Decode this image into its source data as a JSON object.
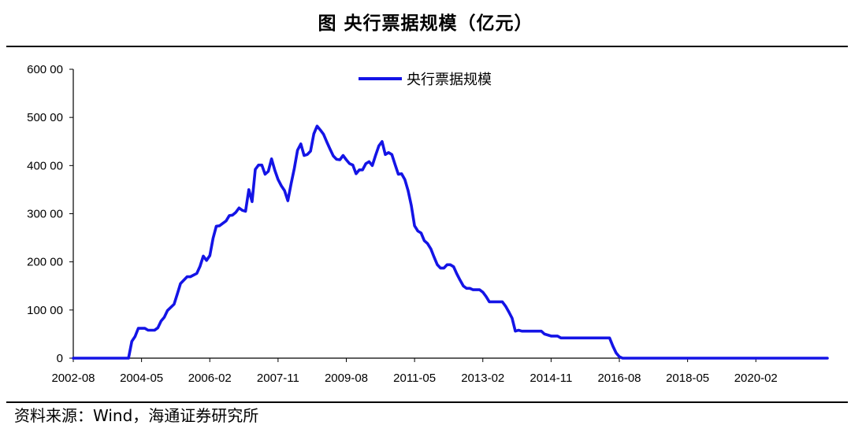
{
  "title": "图  央行票据规模（亿元）",
  "source": "资料来源：Wind，海通证券研究所",
  "chart_data": {
    "type": "line",
    "title": "央行票据规模（亿元）",
    "xlabel": "",
    "ylabel": "",
    "ylim": [
      0,
      60000
    ],
    "yticks": [
      0,
      10000,
      20000,
      30000,
      40000,
      50000,
      60000
    ],
    "ytick_labels": [
      "0",
      "100 00",
      "200 00",
      "300 00",
      "400 00",
      "500 00",
      "600 00"
    ],
    "xlim": [
      "2002-08",
      "2021-12"
    ],
    "xtick_labels": [
      "2002-08",
      "2004-05",
      "2006-02",
      "2007-11",
      "2009-08",
      "2011-05",
      "2013-02",
      "2014-11",
      "2016-08",
      "2018-05",
      "2020-02"
    ],
    "grid": false,
    "legend": "top-center",
    "color": "#1414e6",
    "series": [
      {
        "name": "央行票据规模",
        "points": [
          [
            "2002-08",
            0
          ],
          [
            "2003-06",
            0
          ],
          [
            "2004-01",
            0
          ],
          [
            "2004-02",
            3500
          ],
          [
            "2004-03",
            4500
          ],
          [
            "2004-04",
            6200
          ],
          [
            "2004-06",
            6200
          ],
          [
            "2004-07",
            5800
          ],
          [
            "2004-09",
            5800
          ],
          [
            "2004-10",
            6300
          ],
          [
            "2004-11",
            7700
          ],
          [
            "2004-12",
            8500
          ],
          [
            "2005-01",
            9900
          ],
          [
            "2005-03",
            11200
          ],
          [
            "2005-04",
            13300
          ],
          [
            "2005-05",
            15500
          ],
          [
            "2005-06",
            16200
          ],
          [
            "2005-07",
            16900
          ],
          [
            "2005-08",
            16900
          ],
          [
            "2005-10",
            17600
          ],
          [
            "2005-11",
            19100
          ],
          [
            "2005-12",
            21200
          ],
          [
            "2006-01",
            20300
          ],
          [
            "2006-02",
            21300
          ],
          [
            "2006-03",
            24900
          ],
          [
            "2006-04",
            27400
          ],
          [
            "2006-05",
            27500
          ],
          [
            "2006-06",
            28000
          ],
          [
            "2006-07",
            28500
          ],
          [
            "2006-08",
            29600
          ],
          [
            "2006-09",
            29700
          ],
          [
            "2006-10",
            30300
          ],
          [
            "2006-11",
            31200
          ],
          [
            "2006-12",
            30700
          ],
          [
            "2007-01",
            30500
          ],
          [
            "2007-02",
            35000
          ],
          [
            "2007-03",
            32500
          ],
          [
            "2007-04",
            39200
          ],
          [
            "2007-05",
            40100
          ],
          [
            "2007-06",
            40100
          ],
          [
            "2007-07",
            38200
          ],
          [
            "2007-08",
            38800
          ],
          [
            "2007-09",
            41400
          ],
          [
            "2007-10",
            39000
          ],
          [
            "2007-11",
            37100
          ],
          [
            "2007-12",
            35800
          ],
          [
            "2008-01",
            34800
          ],
          [
            "2008-02",
            32700
          ],
          [
            "2008-03",
            36200
          ],
          [
            "2008-04",
            39400
          ],
          [
            "2008-05",
            43200
          ],
          [
            "2008-06",
            44500
          ],
          [
            "2008-07",
            42100
          ],
          [
            "2008-08",
            42300
          ],
          [
            "2008-09",
            43000
          ],
          [
            "2008-10",
            46600
          ],
          [
            "2008-11",
            48200
          ],
          [
            "2008-12",
            47400
          ],
          [
            "2009-01",
            46500
          ],
          [
            "2009-02",
            44900
          ],
          [
            "2009-03",
            43400
          ],
          [
            "2009-04",
            42000
          ],
          [
            "2009-05",
            41300
          ],
          [
            "2009-06",
            41200
          ],
          [
            "2009-07",
            42100
          ],
          [
            "2009-08",
            41200
          ],
          [
            "2009-09",
            40400
          ],
          [
            "2009-10",
            40100
          ],
          [
            "2009-11",
            38300
          ],
          [
            "2009-12",
            39100
          ],
          [
            "2010-01",
            39100
          ],
          [
            "2010-02",
            40400
          ],
          [
            "2010-03",
            40800
          ],
          [
            "2010-04",
            40000
          ],
          [
            "2010-05",
            42100
          ],
          [
            "2010-06",
            44100
          ],
          [
            "2010-07",
            45000
          ],
          [
            "2010-08",
            42300
          ],
          [
            "2010-09",
            42700
          ],
          [
            "2010-10",
            42300
          ],
          [
            "2010-11",
            40200
          ],
          [
            "2010-12",
            38200
          ],
          [
            "2011-01",
            38300
          ],
          [
            "2011-02",
            37100
          ],
          [
            "2011-03",
            34800
          ],
          [
            "2011-04",
            31700
          ],
          [
            "2011-05",
            27500
          ],
          [
            "2011-06",
            26400
          ],
          [
            "2011-07",
            26000
          ],
          [
            "2011-08",
            24400
          ],
          [
            "2011-09",
            23800
          ],
          [
            "2011-10",
            22700
          ],
          [
            "2011-11",
            21000
          ],
          [
            "2011-12",
            19400
          ],
          [
            "2012-01",
            18700
          ],
          [
            "2012-02",
            18700
          ],
          [
            "2012-03",
            19400
          ],
          [
            "2012-04",
            19400
          ],
          [
            "2012-05",
            19000
          ],
          [
            "2012-06",
            17500
          ],
          [
            "2012-07",
            16200
          ],
          [
            "2012-08",
            15000
          ],
          [
            "2012-09",
            14500
          ],
          [
            "2012-10",
            14500
          ],
          [
            "2012-11",
            14200
          ],
          [
            "2012-12",
            14200
          ],
          [
            "2013-01",
            14200
          ],
          [
            "2013-02",
            13700
          ],
          [
            "2013-03",
            12800
          ],
          [
            "2013-04",
            11700
          ],
          [
            "2013-08",
            11700
          ],
          [
            "2013-09",
            10800
          ],
          [
            "2013-10",
            9600
          ],
          [
            "2013-11",
            8300
          ],
          [
            "2013-12",
            5600
          ],
          [
            "2014-01",
            5800
          ],
          [
            "2014-02",
            5600
          ],
          [
            "2014-08",
            5600
          ],
          [
            "2014-09",
            5000
          ],
          [
            "2014-10",
            4800
          ],
          [
            "2014-11",
            4600
          ],
          [
            "2015-01",
            4600
          ],
          [
            "2015-02",
            4200
          ],
          [
            "2016-05",
            4200
          ],
          [
            "2016-06",
            2500
          ],
          [
            "2016-07",
            1100
          ],
          [
            "2016-08",
            300
          ],
          [
            "2016-09",
            0
          ],
          [
            "2021-12",
            0
          ]
        ]
      }
    ]
  }
}
